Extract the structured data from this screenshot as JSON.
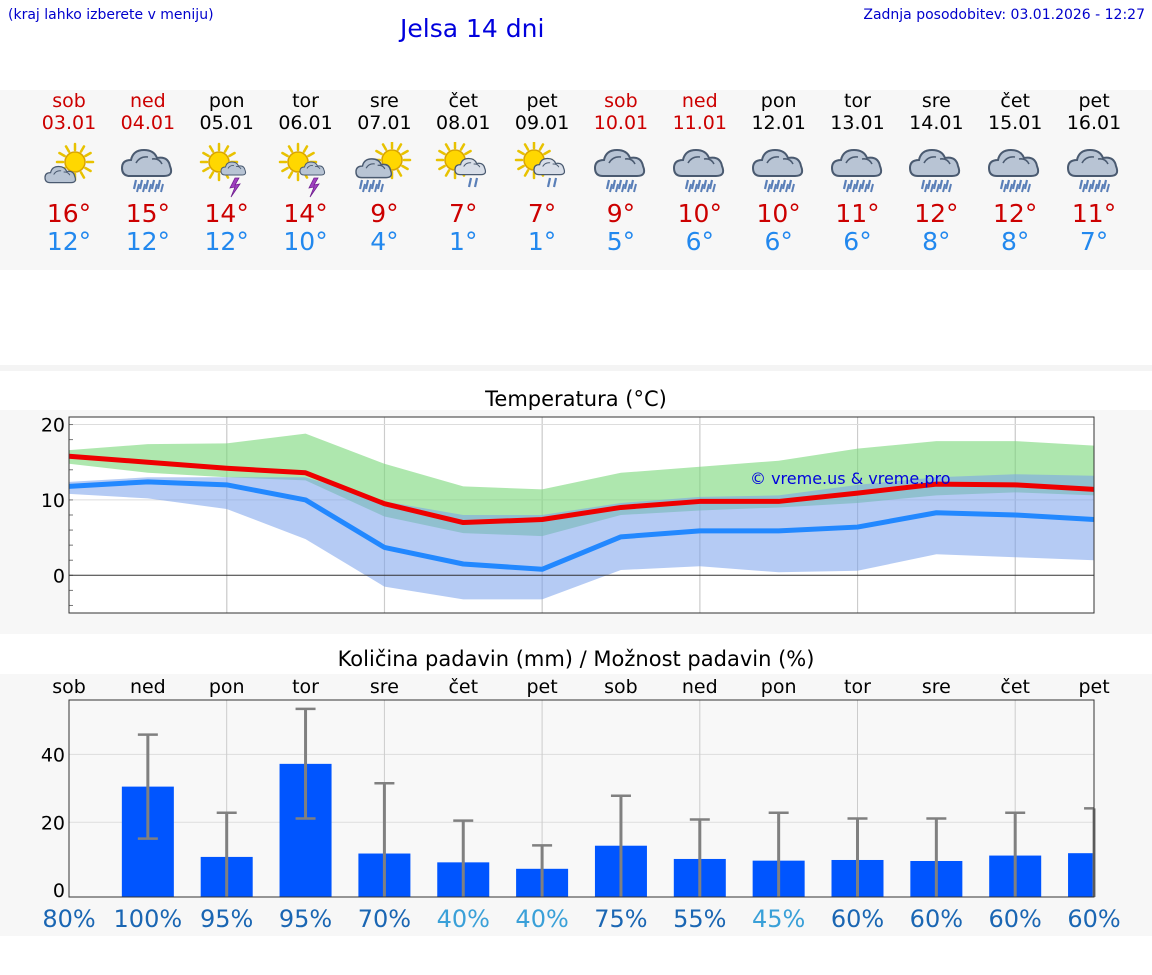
{
  "header": {
    "menu_hint": "(kraj lahko izberete v meniju)",
    "title": "Jelsa 14 dni",
    "last_update": "Zadnja posodobitev: 03.01.2026 - 12:27"
  },
  "colors": {
    "weekend": "#cc0000",
    "weekday": "#000000",
    "max_temp": "#cc0000",
    "min_temp": "#2288ee",
    "bar": "#0055ff",
    "max_line": "#ee0000",
    "min_line": "#2288ff"
  },
  "days": [
    {
      "name": "sob",
      "date": "03.01",
      "weekend": true,
      "icon": "sun-cloud-icon",
      "tmax": "16°",
      "tmin": "12°"
    },
    {
      "name": "ned",
      "date": "04.01",
      "weekend": true,
      "icon": "rain-cloud-icon",
      "tmax": "15°",
      "tmin": "12°"
    },
    {
      "name": "pon",
      "date": "05.01",
      "weekend": false,
      "icon": "sun-thunder-icon",
      "tmax": "14°",
      "tmin": "12°"
    },
    {
      "name": "tor",
      "date": "06.01",
      "weekend": false,
      "icon": "sun-thunder-icon",
      "tmax": "14°",
      "tmin": "10°"
    },
    {
      "name": "sre",
      "date": "07.01",
      "weekend": false,
      "icon": "sun-rain-heavy-icon",
      "tmax": "9°",
      "tmin": "4°"
    },
    {
      "name": "čet",
      "date": "08.01",
      "weekend": false,
      "icon": "sun-cloud-rain-icon",
      "tmax": "7°",
      "tmin": "1°"
    },
    {
      "name": "pet",
      "date": "09.01",
      "weekend": false,
      "icon": "sun-cloud-rain-icon",
      "tmax": "7°",
      "tmin": "1°"
    },
    {
      "name": "sob",
      "date": "10.01",
      "weekend": true,
      "icon": "rain-cloud-icon",
      "tmax": "9°",
      "tmin": "5°"
    },
    {
      "name": "ned",
      "date": "11.01",
      "weekend": true,
      "icon": "rain-cloud-icon",
      "tmax": "10°",
      "tmin": "6°"
    },
    {
      "name": "pon",
      "date": "12.01",
      "weekend": false,
      "icon": "rain-cloud-icon",
      "tmax": "10°",
      "tmin": "6°"
    },
    {
      "name": "tor",
      "date": "13.01",
      "weekend": false,
      "icon": "rain-cloud-icon",
      "tmax": "11°",
      "tmin": "6°"
    },
    {
      "name": "sre",
      "date": "14.01",
      "weekend": false,
      "icon": "rain-cloud-icon",
      "tmax": "12°",
      "tmin": "8°"
    },
    {
      "name": "čet",
      "date": "15.01",
      "weekend": false,
      "icon": "rain-cloud-icon",
      "tmax": "12°",
      "tmin": "8°"
    },
    {
      "name": "pet",
      "date": "16.01",
      "weekend": false,
      "icon": "rain-cloud-icon",
      "tmax": "11°",
      "tmin": "7°"
    }
  ],
  "chart_data": [
    {
      "type": "line",
      "title": "Temperatura (°C)",
      "watermark": "© vreme.us & vreme.pro",
      "ylim": [
        -5,
        21
      ],
      "yticks": [
        "0",
        "10",
        "20"
      ],
      "x": [
        0,
        1,
        2,
        3,
        4,
        5,
        6,
        7,
        8,
        9,
        10,
        11,
        12,
        13
      ],
      "series": [
        {
          "name": "max",
          "values": [
            15.8,
            15.0,
            14.2,
            13.6,
            9.5,
            7.0,
            7.4,
            9.0,
            9.8,
            9.8,
            10.9,
            12.1,
            12.0,
            11.4
          ]
        },
        {
          "name": "min",
          "values": [
            11.8,
            12.4,
            12.0,
            10.0,
            3.7,
            1.5,
            0.8,
            5.1,
            5.9,
            5.9,
            6.4,
            8.3,
            8.0,
            7.4
          ]
        }
      ],
      "bands": [
        {
          "name": "max_range",
          "low": [
            14.8,
            13.6,
            13.0,
            12.6,
            7.8,
            5.6,
            5.2,
            8.0,
            8.6,
            9.0,
            9.6,
            10.6,
            11.0,
            10.6
          ],
          "high": [
            16.6,
            17.4,
            17.5,
            18.8,
            14.8,
            11.8,
            11.4,
            13.6,
            14.4,
            15.2,
            16.8,
            17.8,
            17.8,
            17.2
          ]
        },
        {
          "name": "min_range",
          "low": [
            10.8,
            10.2,
            8.8,
            4.8,
            -1.5,
            -3.2,
            -3.2,
            0.7,
            1.2,
            0.4,
            0.6,
            2.8,
            2.4,
            2.0
          ],
          "high": [
            12.4,
            13.0,
            13.0,
            13.0,
            9.8,
            8.0,
            8.0,
            9.6,
            10.4,
            10.6,
            12.0,
            13.0,
            13.4,
            13.2
          ]
        }
      ]
    },
    {
      "type": "bar",
      "title": "Količina padavin (mm) / Možnost padavin (%)",
      "categories": [
        "sob",
        "ned",
        "pon",
        "tor",
        "sre",
        "čet",
        "pet",
        "sob",
        "ned",
        "pon",
        "tor",
        "sre",
        "čet",
        "pet"
      ],
      "values": [
        0,
        30.5,
        9.8,
        37.2,
        10.8,
        8.2,
        6.3,
        13.1,
        9.2,
        8.7,
        8.9,
        8.6,
        10.2,
        10.9
      ],
      "error_high": [
        0,
        45.8,
        22.8,
        53.4,
        31.5,
        20.5,
        13.2,
        27.8,
        20.8,
        22.8,
        21.1,
        21.1,
        22.8,
        24.1
      ],
      "error_low": [
        0,
        15.2,
        0,
        21.1,
        0,
        0,
        0,
        0,
        0,
        0,
        0,
        0,
        0,
        0
      ],
      "probability": [
        "80%",
        "100%",
        "95%",
        "95%",
        "70%",
        "40%",
        "40%",
        "75%",
        "55%",
        "45%",
        "60%",
        "60%",
        "60%",
        "60%"
      ],
      "probability_colors": [
        "#1a66b3",
        "#1a66b3",
        "#1a66b3",
        "#1a66b3",
        "#1a66b3",
        "#3aa0d8",
        "#3aa0d8",
        "#1a66b3",
        "#1a66b3",
        "#3aa0d8",
        "#1a66b3",
        "#1a66b3",
        "#1a66b3",
        "#1a66b3"
      ],
      "ylim": [
        -2,
        56
      ],
      "yticks": [
        "0",
        "20",
        "40"
      ]
    }
  ]
}
